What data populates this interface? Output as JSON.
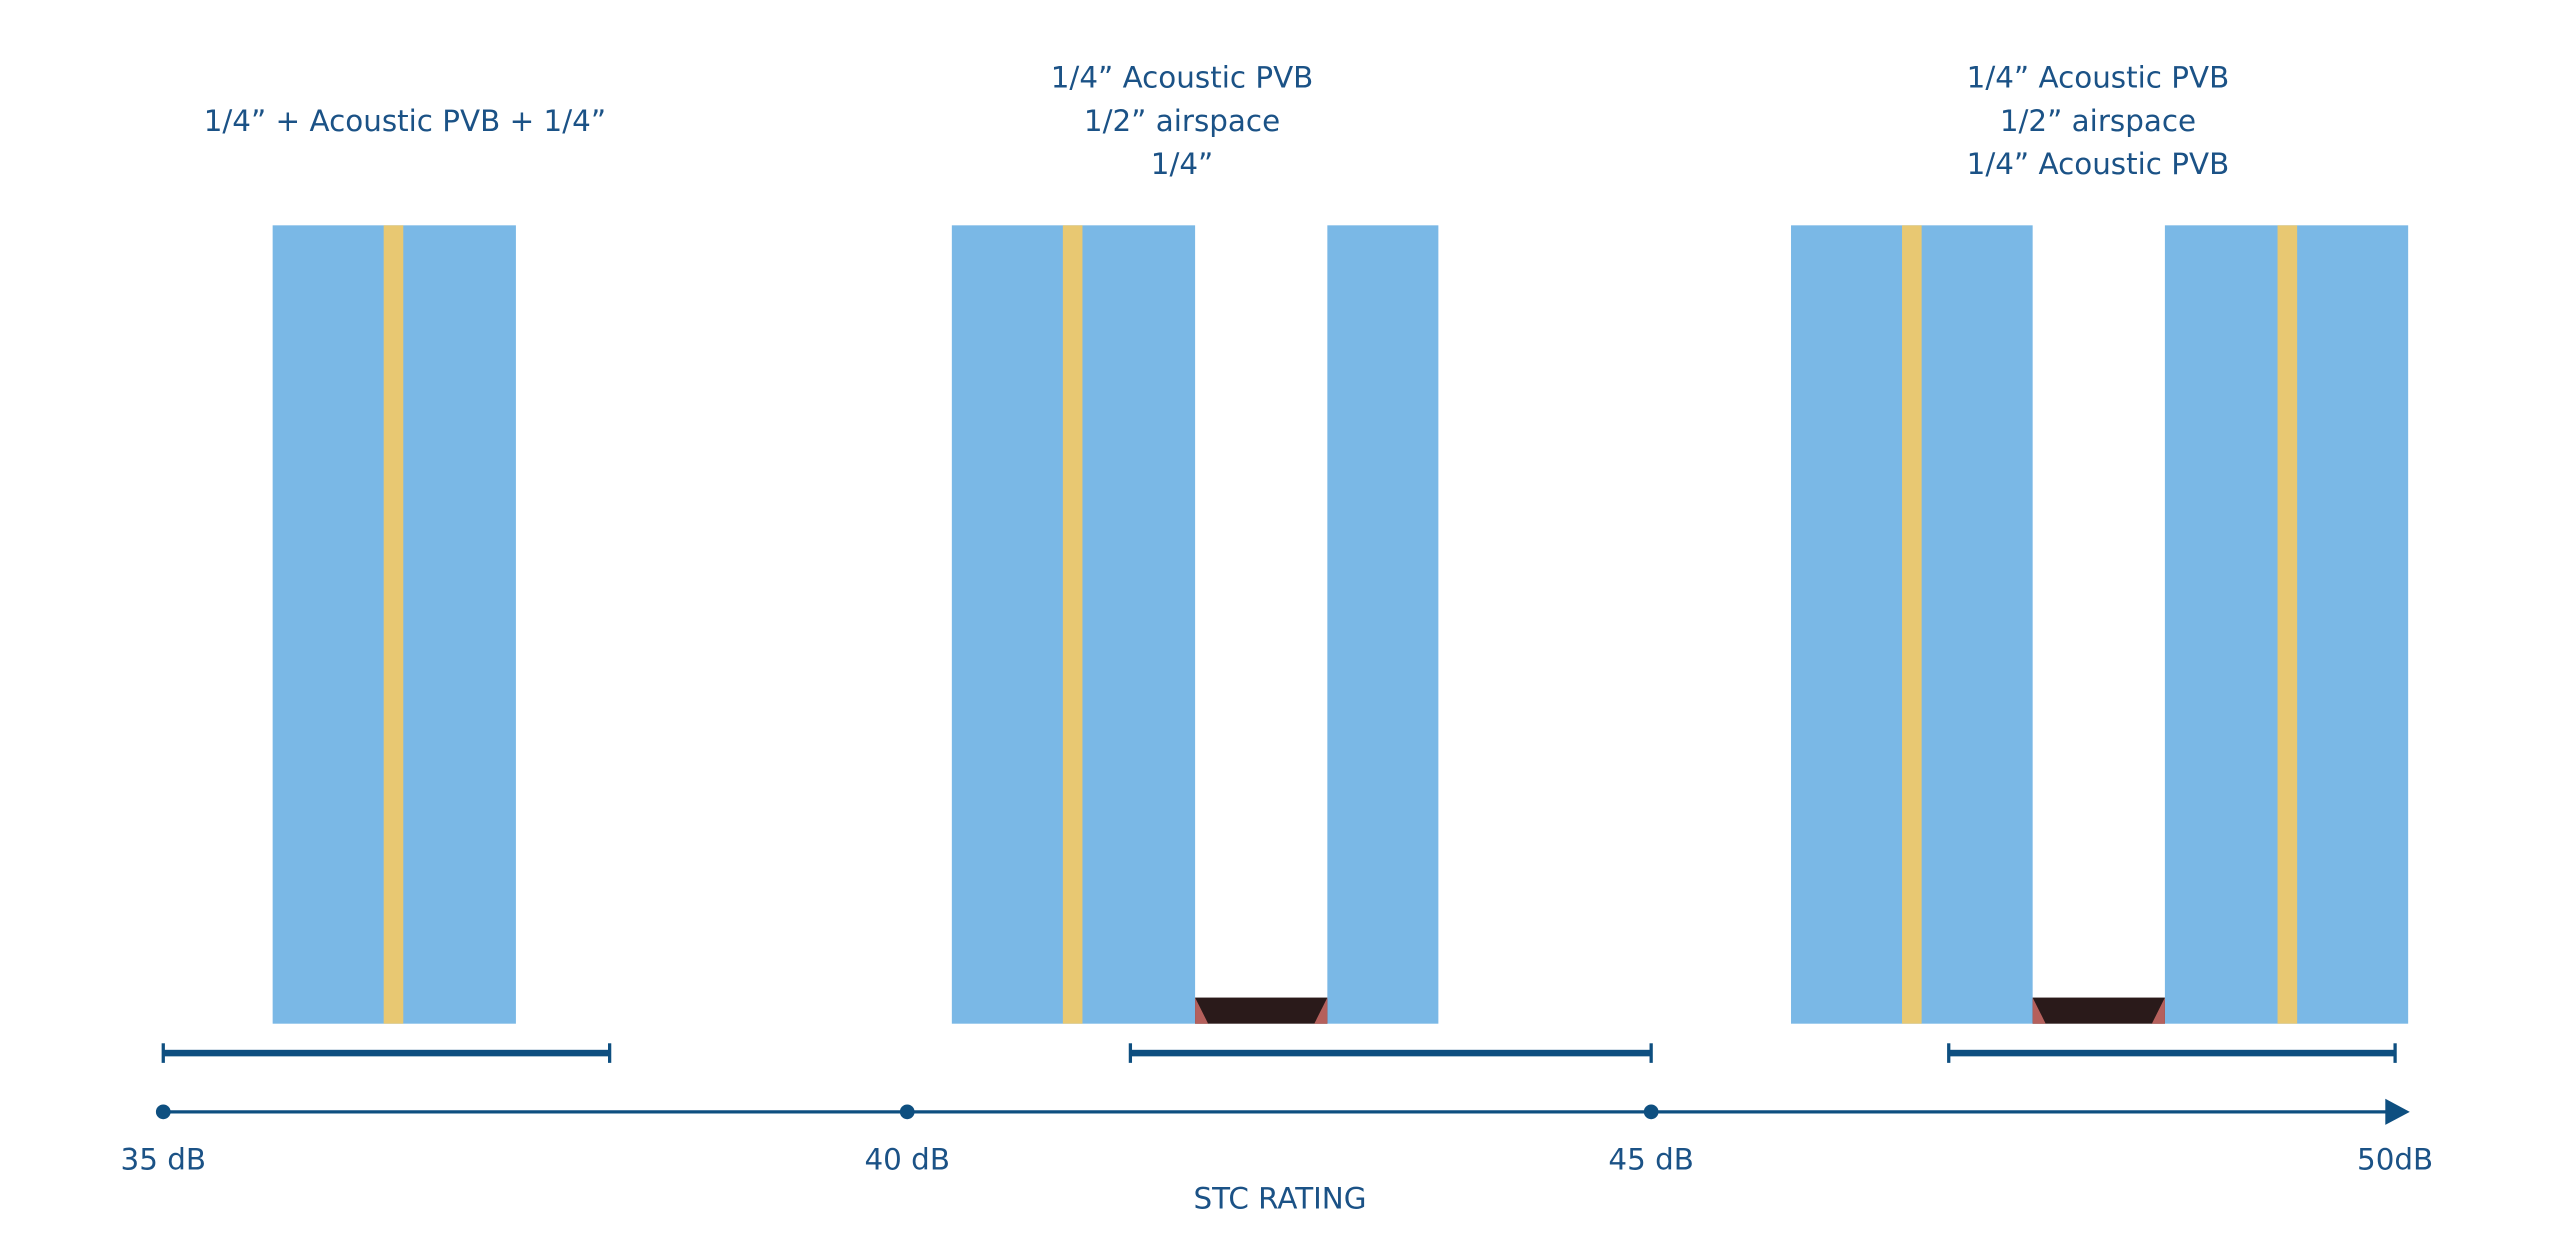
{
  "chart_data": {
    "type": "range",
    "categories": [
      [
        "1/4” + Acoustic PVB + 1/4”"
      ],
      [
        "1/4” Acoustic PVB",
        "1/2” airspace",
        "1/4”"
      ],
      [
        "1/4” Acoustic PVB",
        "1/2” airspace",
        "1/4” Acoustic PVB"
      ]
    ],
    "low": [
      35,
      41.5,
      47
    ],
    "high": [
      38,
      45,
      50
    ],
    "xlim": [
      35,
      50
    ],
    "xticks": [
      {
        "value": 35,
        "label": "35 dB"
      },
      {
        "value": 40,
        "label": "40 dB"
      },
      {
        "value": 45,
        "label": "45 dB"
      },
      {
        "value": 50,
        "label": "50dB"
      }
    ],
    "xlabel": "STC RATING",
    "color": "#0e4f80"
  }
}
